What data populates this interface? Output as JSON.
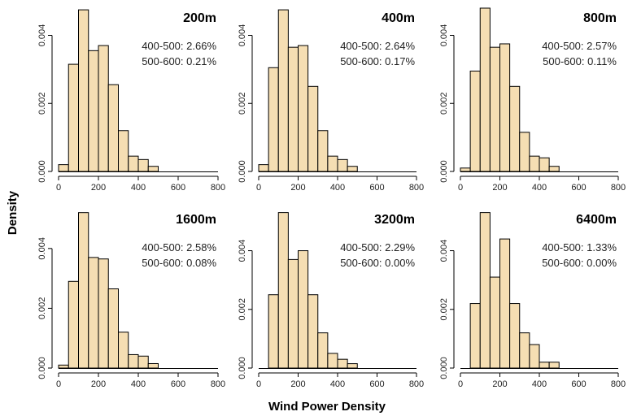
{
  "figure": {
    "ylabel": "Density",
    "xlabel": "Wind Power Density",
    "colors": {
      "bar_fill": "#f5deb3",
      "bar_stroke": "#000000",
      "axis": "#000000",
      "text": "#222222"
    }
  },
  "chart_data": [
    {
      "type": "bar",
      "title": "200m",
      "annotations": [
        "400-500: 2.66%",
        "500-600: 0.21%"
      ],
      "bin_edges": [
        0,
        50,
        100,
        150,
        200,
        250,
        300,
        350,
        400,
        450,
        500
      ],
      "values": [
        0.0002,
        0.00315,
        0.00475,
        0.00355,
        0.0037,
        0.00255,
        0.0012,
        0.00045,
        0.00035,
        0.00015
      ],
      "xlim": [
        0,
        800
      ],
      "ylim": [
        0,
        0.0048
      ],
      "xticks": [
        0,
        200,
        400,
        600,
        800
      ],
      "yticks": [
        0.0,
        0.002,
        0.004
      ],
      "ytick_labels": [
        "0.000",
        "0.002",
        "0.004"
      ]
    },
    {
      "type": "bar",
      "title": "400m",
      "annotations": [
        "400-500: 2.64%",
        "500-600: 0.17%"
      ],
      "bin_edges": [
        0,
        50,
        100,
        150,
        200,
        250,
        300,
        350,
        400,
        450,
        500
      ],
      "values": [
        0.0002,
        0.00305,
        0.00475,
        0.00365,
        0.0037,
        0.0025,
        0.0012,
        0.00045,
        0.00035,
        0.00015
      ],
      "xlim": [
        0,
        800
      ],
      "ylim": [
        0,
        0.0048
      ],
      "xticks": [
        0,
        200,
        400,
        600,
        800
      ],
      "yticks": [
        0.0,
        0.002,
        0.004
      ],
      "ytick_labels": [
        "0.000",
        "0.002",
        "0.004"
      ]
    },
    {
      "type": "bar",
      "title": "800m",
      "annotations": [
        "400-500: 2.57%",
        "500-600: 0.11%"
      ],
      "bin_edges": [
        0,
        50,
        100,
        150,
        200,
        250,
        300,
        350,
        400,
        450,
        500
      ],
      "values": [
        0.0001,
        0.00295,
        0.0048,
        0.00365,
        0.00375,
        0.0025,
        0.00115,
        0.00045,
        0.0004,
        0.00015
      ],
      "xlim": [
        0,
        800
      ],
      "ylim": [
        0,
        0.0048
      ],
      "xticks": [
        0,
        200,
        400,
        600,
        800
      ],
      "yticks": [
        0.0,
        0.002,
        0.004
      ],
      "ytick_labels": [
        "0.000",
        "0.002",
        "0.004"
      ]
    },
    {
      "type": "bar",
      "title": "1600m",
      "annotations": [
        "400-500: 2.58%",
        "500-600: 0.08%"
      ],
      "bin_edges": [
        0,
        50,
        100,
        150,
        200,
        250,
        300,
        350,
        400,
        450,
        500
      ],
      "values": [
        0.0001,
        0.0029,
        0.0052,
        0.0037,
        0.00365,
        0.00265,
        0.0012,
        0.00045,
        0.0004,
        0.00015
      ],
      "xlim": [
        0,
        800
      ],
      "ylim": [
        0,
        0.0053
      ],
      "xticks": [
        0,
        200,
        400,
        600,
        800
      ],
      "yticks": [
        0.0,
        0.002,
        0.004
      ],
      "ytick_labels": [
        "0.000",
        "0.002",
        "0.004"
      ]
    },
    {
      "type": "bar",
      "title": "3200m",
      "annotations": [
        "400-500: 2.29%",
        "500-600: 0.00%"
      ],
      "bin_edges": [
        50,
        100,
        150,
        200,
        250,
        300,
        350,
        400,
        450,
        500
      ],
      "values": [
        0.0025,
        0.0053,
        0.0037,
        0.004,
        0.0025,
        0.0012,
        0.0005,
        0.0003,
        0.00015
      ],
      "xlim": [
        0,
        800
      ],
      "ylim": [
        0,
        0.0054
      ],
      "xticks": [
        0,
        200,
        400,
        600,
        800
      ],
      "yticks": [
        0.0,
        0.002,
        0.004
      ],
      "ytick_labels": [
        "0.000",
        "0.002",
        "0.004"
      ]
    },
    {
      "type": "bar",
      "title": "6400m",
      "annotations": [
        "400-500: 1.33%",
        "500-600: 0.00%"
      ],
      "bin_edges": [
        50,
        100,
        150,
        200,
        250,
        300,
        350,
        400,
        450,
        500
      ],
      "values": [
        0.0022,
        0.0053,
        0.0031,
        0.0044,
        0.0022,
        0.0012,
        0.0008,
        0.0002,
        0.0002
      ],
      "xlim": [
        0,
        800
      ],
      "ylim": [
        0,
        0.0054
      ],
      "xticks": [
        0,
        200,
        400,
        600,
        800
      ],
      "yticks": [
        0.0,
        0.002,
        0.004
      ],
      "ytick_labels": [
        "0.000",
        "0.002",
        "0.004"
      ]
    }
  ]
}
